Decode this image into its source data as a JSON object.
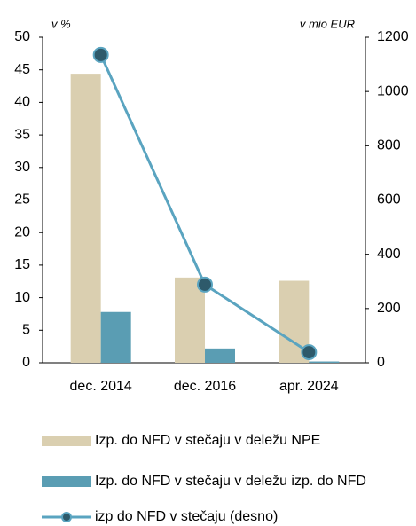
{
  "chart_data": {
    "type": "bar",
    "left_unit": "v %",
    "right_unit": "v mio EUR",
    "categories": [
      "dec. 2014",
      "dec. 2016",
      "apr. 2024"
    ],
    "series": [
      {
        "name": "Izp. do NFD v stečaju v deležu NPE",
        "type": "bar",
        "color": "#dacfb0",
        "values": [
          44.4,
          13.1,
          12.6
        ]
      },
      {
        "name": "Izp. do NFD v stečaju v deležu izp. do NFD",
        "type": "bar",
        "color": "#5a9db3",
        "values": [
          7.8,
          2.2,
          0.2
        ]
      },
      {
        "name": "izp do NFD v stečaju (desno)",
        "type": "line",
        "axis": "y2",
        "color": "#5aa4c0",
        "marker_color": "#2e5a6b",
        "values": [
          1135,
          288,
          39
        ]
      }
    ],
    "ylim": [
      0,
      50
    ],
    "yticks": [
      0,
      5,
      10,
      15,
      20,
      25,
      30,
      35,
      40,
      45,
      50
    ],
    "y2lim": [
      0,
      1200
    ],
    "y2ticks": [
      0,
      200,
      400,
      600,
      800,
      1000,
      1200
    ]
  }
}
